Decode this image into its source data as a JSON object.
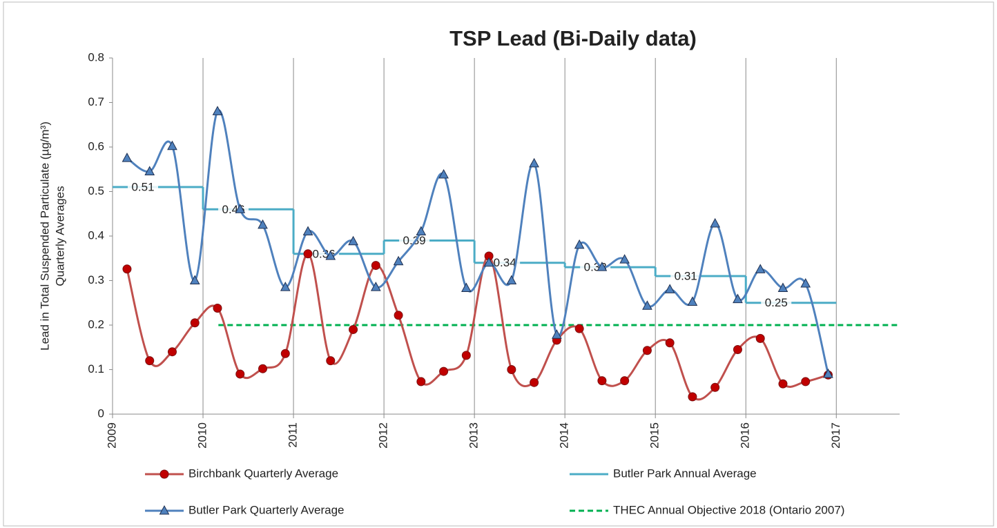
{
  "chart_data": {
    "type": "line",
    "title": "TSP Lead (Bi-Daily data)",
    "y_label": [
      "Lead in Total Suspended Particulate  (µg/m³)",
      "Quarterly Averages"
    ],
    "xlim": [
      2009,
      2017.7
    ],
    "xticks": [
      2009,
      2010,
      2011,
      2012,
      2013,
      2014,
      2015,
      2016,
      2017
    ],
    "ylim": [
      0,
      0.8
    ],
    "yticks": [
      0,
      0.1,
      0.2,
      0.3,
      0.4,
      0.5,
      0.6,
      0.7,
      0.8
    ],
    "grid": "x",
    "legend": "bottom",
    "series": [
      {
        "name": "Birchbank Quarterly Average",
        "style": "smooth",
        "marker": "circle",
        "color": "#c0504d",
        "marker_color": "#c00000",
        "x": [
          2009.16,
          2009.41,
          2009.66,
          2009.91,
          2010.16,
          2010.41,
          2010.66,
          2010.91,
          2011.16,
          2011.41,
          2011.66,
          2011.91,
          2012.16,
          2012.41,
          2012.66,
          2012.91,
          2013.16,
          2013.41,
          2013.66,
          2013.91,
          2014.16,
          2014.41,
          2014.66,
          2014.91,
          2015.16,
          2015.41,
          2015.66,
          2015.91,
          2016.16,
          2016.41,
          2016.66,
          2016.91
        ],
        "values": [
          0.326,
          0.12,
          0.14,
          0.205,
          0.238,
          0.09,
          0.102,
          0.136,
          0.36,
          0.12,
          0.19,
          0.334,
          0.222,
          0.073,
          0.096,
          0.132,
          0.355,
          0.1,
          0.071,
          0.166,
          0.192,
          0.075,
          0.075,
          0.143,
          0.16,
          0.039,
          0.06,
          0.145,
          0.17,
          0.068,
          0.073,
          0.088
        ]
      },
      {
        "name": "Butler Park Quarterly Average",
        "style": "smooth",
        "marker": "triangle",
        "color": "#4f81bd",
        "marker_color": "#4f81bd",
        "x": [
          2009.16,
          2009.41,
          2009.66,
          2009.91,
          2010.16,
          2010.41,
          2010.66,
          2010.91,
          2011.16,
          2011.41,
          2011.66,
          2011.91,
          2012.16,
          2012.41,
          2012.66,
          2012.91,
          2013.16,
          2013.41,
          2013.66,
          2013.91,
          2014.16,
          2014.41,
          2014.66,
          2014.91,
          2015.16,
          2015.41,
          2015.66,
          2015.91,
          2016.16,
          2016.41,
          2016.66,
          2016.91
        ],
        "values": [
          0.575,
          0.545,
          0.602,
          0.3,
          0.68,
          0.46,
          0.425,
          0.285,
          0.41,
          0.355,
          0.388,
          0.285,
          0.343,
          0.41,
          0.538,
          0.283,
          0.34,
          0.3,
          0.563,
          0.178,
          0.38,
          0.33,
          0.347,
          0.243,
          0.28,
          0.252,
          0.428,
          0.258,
          0.325,
          0.283,
          0.293,
          0.09
        ]
      },
      {
        "name": "Butler Park Annual Average",
        "style": "step",
        "color": "#4bacc6",
        "labels": true,
        "edges": [
          2009,
          2010,
          2011,
          2012,
          2013,
          2014,
          2015,
          2016,
          2017
        ],
        "values": [
          0.51,
          0.46,
          0.36,
          0.39,
          0.34,
          0.33,
          0.31,
          0.25
        ]
      },
      {
        "name": "THEC Annual Objective 2018 (Ontario 2007)",
        "style": "dashed",
        "color": "#00b050",
        "x": [
          2010.17,
          2017.7
        ],
        "values": [
          0.2,
          0.2
        ]
      }
    ]
  }
}
